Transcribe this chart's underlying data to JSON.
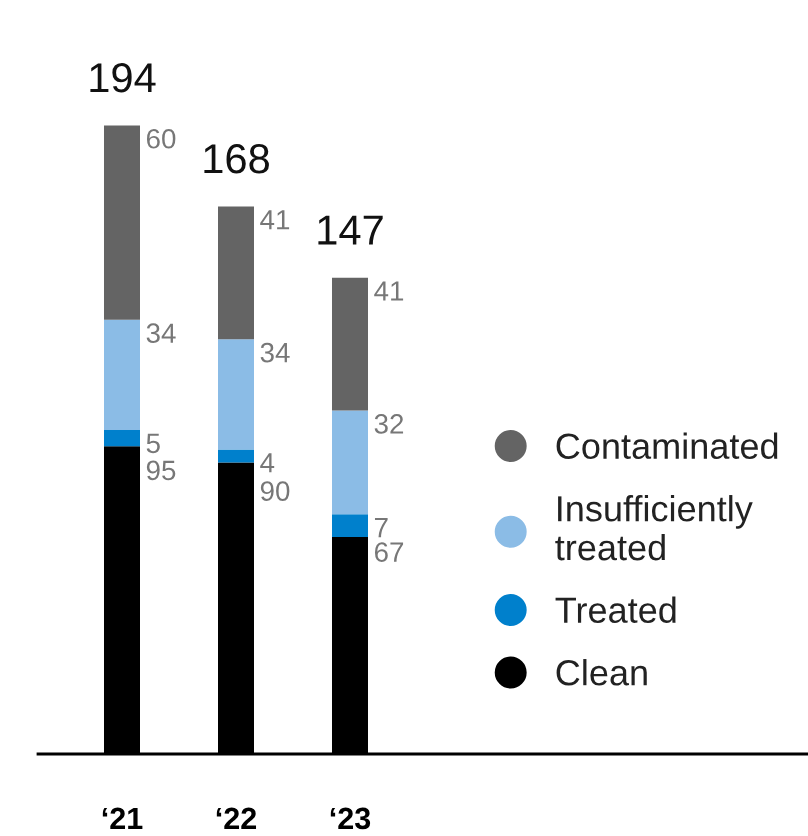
{
  "chart_data": {
    "type": "bar",
    "stacked": true,
    "categories": [
      "‘21",
      "‘22",
      "‘23"
    ],
    "series": [
      {
        "name": "Clean",
        "color": "#000000",
        "values": [
          95,
          90,
          67
        ]
      },
      {
        "name": "Treated",
        "color": "#0080cc",
        "values": [
          5,
          4,
          7
        ]
      },
      {
        "name": "Insufficiently\ntreated",
        "color": "#8bbce6",
        "values": [
          34,
          34,
          32
        ]
      },
      {
        "name": "Contaminated",
        "color": "#646464",
        "values": [
          60,
          41,
          41
        ]
      }
    ],
    "data_labels": true,
    "totals": [
      "194",
      "168",
      "147"
    ],
    "legend": "right"
  }
}
